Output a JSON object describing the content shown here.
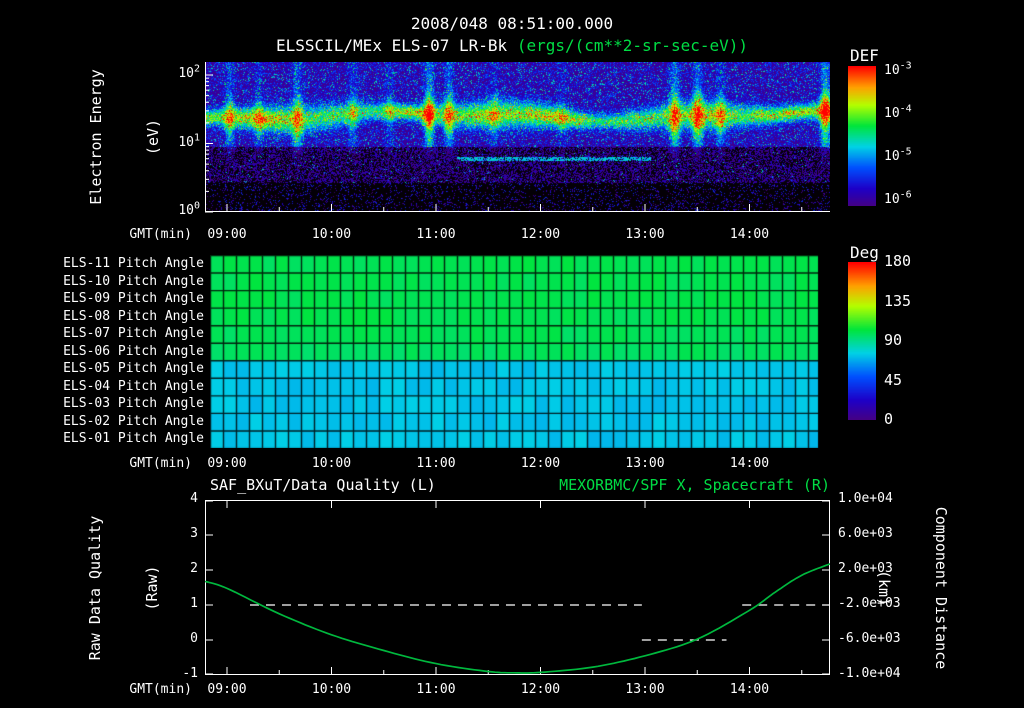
{
  "colors": {
    "background": "#000000",
    "text": "#ffffff",
    "accent_green": "#00dd44",
    "curve_green": "#00b83e",
    "quality_dash": "#ffffff",
    "axis": "#ffffff"
  },
  "header": {
    "title": "2008/048 08:51:00.000",
    "instrument": "ELSSCIL/MEx ELS-07 LR-Bk",
    "units": "(ergs/(cm**2-sr-sec-eV))"
  },
  "x_axis": {
    "label": "GMT(min)",
    "ticks": [
      "09:00",
      "10:00",
      "11:00",
      "12:00",
      "13:00",
      "14:00"
    ],
    "tick_hours": [
      9,
      10,
      11,
      12,
      13,
      14
    ],
    "start_hour": 8.789,
    "end_hour": 14.77
  },
  "chart_data": [
    {
      "type": "heatmap",
      "name": "electron-energy-spectrogram",
      "ylabel": [
        "Electron Energy",
        "(eV)"
      ],
      "y_scale": "log",
      "y_ticks": [
        {
          "b": "10",
          "e": "2",
          "log": 2
        },
        {
          "b": "10",
          "e": "1",
          "log": 1
        },
        {
          "b": "10",
          "e": "0",
          "log": 0
        }
      ],
      "y_range_log10": [
        0,
        2.19
      ],
      "colorbar": {
        "label": "DEF",
        "scale": "log",
        "ticks": [
          {
            "b": "10",
            "e": "-3"
          },
          {
            "b": "10",
            "e": "-4"
          },
          {
            "b": "10",
            "e": "-5"
          },
          {
            "b": "10",
            "e": "-6"
          }
        ]
      },
      "colormap_stops": [
        [
          0,
          0,
          0,
          0
        ],
        [
          0.06,
          70,
          0,
          130
        ],
        [
          0.18,
          30,
          0,
          200
        ],
        [
          0.32,
          0,
          80,
          255
        ],
        [
          0.46,
          0,
          210,
          230
        ],
        [
          0.6,
          0,
          230,
          60
        ],
        [
          0.74,
          180,
          255,
          0
        ],
        [
          0.86,
          255,
          160,
          0
        ],
        [
          1,
          255,
          0,
          0
        ]
      ],
      "features": {
        "band_center_log10_ev": 1.4,
        "band_sigma_log10": 0.15,
        "dark_band_log10": [
          0.42,
          0.95
        ],
        "thin_line_log10_ev": 0.78,
        "thin_line_hours": [
          11.2,
          13.05
        ],
        "streaks": [
          [
            9.02,
            0.5
          ],
          [
            9.3,
            0.3
          ],
          [
            9.67,
            0.55
          ],
          [
            10.2,
            0.4
          ],
          [
            10.55,
            0.3
          ],
          [
            10.93,
            0.8
          ],
          [
            11.12,
            0.6
          ],
          [
            11.55,
            0.25
          ],
          [
            12.2,
            0.2
          ],
          [
            13.28,
            0.7
          ],
          [
            13.5,
            0.65
          ],
          [
            13.72,
            0.4
          ],
          [
            14.72,
            0.85
          ]
        ]
      }
    },
    {
      "type": "heatmap",
      "name": "pitch-angle-rows",
      "rows": [
        {
          "label": "ELS-11 Pitch Angle",
          "value_deg": 105
        },
        {
          "label": "ELS-10 Pitch Angle",
          "value_deg": 105
        },
        {
          "label": "ELS-09 Pitch Angle",
          "value_deg": 105
        },
        {
          "label": "ELS-08 Pitch Angle",
          "value_deg": 105
        },
        {
          "label": "ELS-07 Pitch Angle",
          "value_deg": 104
        },
        {
          "label": "ELS-06 Pitch Angle",
          "value_deg": 103
        },
        {
          "label": "ELS-05 Pitch Angle",
          "value_deg": 80
        },
        {
          "label": "ELS-04 Pitch Angle",
          "value_deg": 80
        },
        {
          "label": "ELS-03 Pitch Angle",
          "value_deg": 80
        },
        {
          "label": "ELS-02 Pitch Angle",
          "value_deg": 80
        },
        {
          "label": "ELS-01 Pitch Angle",
          "value_deg": 80
        }
      ],
      "colorbar": {
        "label": "Deg",
        "ticks": [
          "180",
          "135",
          "90",
          "45",
          "0"
        ],
        "range": [
          0,
          180
        ]
      }
    },
    {
      "type": "line",
      "name": "quality-and-distance",
      "title_left": "SAF_BXuT/Data Quality (L)",
      "title_right": "MEXORBMC/SPF X, Spacecraft (R)",
      "left_axis": {
        "label": [
          "Raw Data Quality",
          "(Raw)"
        ],
        "ticks": [
          "4",
          "3",
          "2",
          "1",
          "0",
          "-1"
        ],
        "range": [
          -1,
          4
        ]
      },
      "right_axis": {
        "label": [
          "Component Distance",
          "(km)"
        ],
        "ticks": [
          "1.0e+04",
          "6.0e+03",
          "2.0e+03",
          "-2.0e+03",
          "-6.0e+03",
          "-1.0e+04"
        ],
        "range": [
          -10000,
          10000
        ]
      },
      "series": [
        {
          "name": "spacecraft-x",
          "axis": "right",
          "style": "solid",
          "color_key": "curve_green",
          "points_hour_km": [
            [
              8.79,
              700
            ],
            [
              9.0,
              -100
            ],
            [
              9.5,
              -3000
            ],
            [
              10.0,
              -5400
            ],
            [
              10.5,
              -7200
            ],
            [
              11.0,
              -8700
            ],
            [
              11.5,
              -9600
            ],
            [
              11.75,
              -9750
            ],
            [
              12.0,
              -9700
            ],
            [
              12.5,
              -9100
            ],
            [
              13.0,
              -7800
            ],
            [
              13.5,
              -5900
            ],
            [
              14.0,
              -2600
            ],
            [
              14.25,
              -500
            ],
            [
              14.5,
              1400
            ],
            [
              14.77,
              2700
            ]
          ]
        },
        {
          "name": "raw-data-quality",
          "axis": "left",
          "style": "dashed",
          "color_key": "quality_dash",
          "segments": [
            {
              "value": 1,
              "from_hour": 9.22,
              "to_hour": 12.97
            },
            {
              "value": 0,
              "from_hour": 12.97,
              "to_hour": 13.78
            },
            {
              "value": 1,
              "from_hour": 13.93,
              "to_hour": 14.77
            }
          ]
        }
      ]
    }
  ]
}
